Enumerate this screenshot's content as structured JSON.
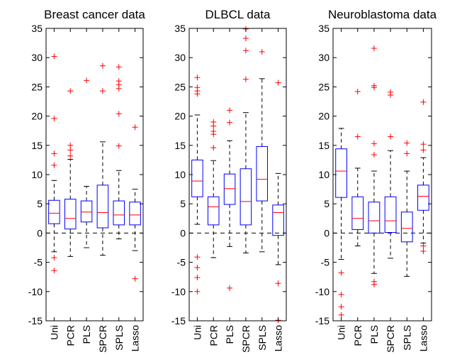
{
  "chart_data": [
    {
      "type": "box",
      "title": "Breast cancer data",
      "categories": [
        "Uni",
        "PCR",
        "PLS",
        "SPCR",
        "SPLS",
        "Lasso"
      ],
      "ylim": [
        -15,
        35
      ],
      "yticks": [
        -15,
        -10,
        -5,
        0,
        5,
        10,
        15,
        20,
        25,
        30,
        35
      ],
      "reference_line": 0,
      "boxes": [
        {
          "whisker_low": -3.2,
          "q1": 1.6,
          "median": 3.4,
          "q3": 5.6,
          "whisker_high": 9.0,
          "outliers": [
            30.2,
            19.6,
            13.6,
            11.6,
            -4.2,
            -6.4
          ]
        },
        {
          "whisker_low": -4.0,
          "q1": 0.7,
          "median": 2.5,
          "q3": 5.8,
          "whisker_high": 12.6,
          "outliers": [
            24.3,
            15.0,
            14.2,
            13.2
          ]
        },
        {
          "whisker_low": -2.5,
          "q1": 1.9,
          "median": 3.6,
          "q3": 5.5,
          "whisker_high": 8.0,
          "outliers": [
            26.1
          ]
        },
        {
          "whisker_low": -3.8,
          "q1": 0.9,
          "median": 3.5,
          "q3": 8.2,
          "whisker_high": 15.6,
          "outliers": [
            28.6,
            24.3
          ]
        },
        {
          "whisker_low": -1.0,
          "q1": 1.4,
          "median": 3.1,
          "q3": 5.5,
          "whisker_high": 10.7,
          "outliers": [
            28.4,
            26.0,
            25.4,
            24.7,
            20.4,
            14.9
          ]
        },
        {
          "whisker_low": -3.0,
          "q1": 1.4,
          "median": 3.1,
          "q3": 5.3,
          "whisker_high": 7.5,
          "outliers": [
            18.1,
            -7.8
          ]
        }
      ]
    },
    {
      "type": "box",
      "title": "DLBCL data",
      "categories": [
        "Uni",
        "PCR",
        "PLS",
        "SPCR",
        "SPLS",
        "Lasso"
      ],
      "ylim": [
        -15,
        35
      ],
      "yticks": [
        -15,
        -10,
        -5,
        0,
        5,
        10,
        15,
        20,
        25,
        30,
        35
      ],
      "reference_line": 0,
      "boxes": [
        {
          "whisker_low": 1.5,
          "q1": 6.2,
          "median": 8.9,
          "q3": 12.5,
          "whisker_high": 20.2,
          "outliers": [
            26.6,
            24.9,
            24.3,
            23.8,
            -4.1,
            -5.9,
            -7.6,
            -10.0
          ]
        },
        {
          "whisker_low": -4.2,
          "q1": 1.4,
          "median": 4.5,
          "q3": 6.2,
          "whisker_high": 12.4,
          "outliers": [
            19.0,
            18.3,
            17.4,
            16.9,
            14.6
          ]
        },
        {
          "whisker_low": -2.3,
          "q1": 4.9,
          "median": 7.6,
          "q3": 10.1,
          "whisker_high": 15.8,
          "outliers": [
            21.0,
            18.9,
            -9.4
          ]
        },
        {
          "whisker_low": -3.4,
          "q1": 1.4,
          "median": 5.4,
          "q3": 11.0,
          "whisker_high": 20.6,
          "outliers": [
            34.9,
            33.3,
            31.2,
            26.3
          ]
        },
        {
          "whisker_low": -3.2,
          "q1": 5.5,
          "median": 9.2,
          "q3": 14.8,
          "whisker_high": 26.4,
          "outliers": [
            31.0
          ]
        },
        {
          "whisker_low": -5.4,
          "q1": -0.4,
          "median": 3.5,
          "q3": 4.8,
          "whisker_high": 10.2,
          "outliers": [
            25.7,
            -8.6,
            -14.9
          ]
        }
      ]
    },
    {
      "type": "box",
      "title": "Neuroblastoma data",
      "categories": [
        "Uni",
        "PCR",
        "PLS",
        "SPCR",
        "SPLS",
        "Lasso"
      ],
      "ylim": [
        -15,
        35
      ],
      "yticks": [
        -15,
        -10,
        -5,
        0,
        5,
        10,
        15,
        20,
        25,
        30,
        35
      ],
      "reference_line": 0,
      "boxes": [
        {
          "whisker_low": -4.5,
          "q1": 6.1,
          "median": 10.6,
          "q3": 14.4,
          "whisker_high": 17.9,
          "outliers": [
            -6.8,
            -10.5,
            -12.6,
            -14.0
          ]
        },
        {
          "whisker_low": -2.2,
          "q1": 0.6,
          "median": 2.5,
          "q3": 6.2,
          "whisker_high": 11.1,
          "outliers": [
            24.2,
            16.5
          ]
        },
        {
          "whisker_low": -6.9,
          "q1": 0.0,
          "median": 2.1,
          "q3": 5.3,
          "whisker_high": 10.6,
          "outliers": [
            31.6,
            25.2,
            24.9,
            15.3,
            13.4,
            -8.3,
            -8.8
          ]
        },
        {
          "whisker_low": -4.3,
          "q1": 0.1,
          "median": 2.1,
          "q3": 6.2,
          "whisker_high": 14.1,
          "outliers": [
            24.1,
            23.6,
            16.5
          ]
        },
        {
          "whisker_low": -7.4,
          "q1": -1.5,
          "median": 0.8,
          "q3": 3.6,
          "whisker_high": 10.6,
          "outliers": [
            15.4,
            13.6
          ]
        },
        {
          "whisker_low": -1.7,
          "q1": 3.9,
          "median": 6.3,
          "q3": 8.2,
          "whisker_high": 12.9,
          "outliers": [
            22.4,
            15.2,
            14.2,
            -2.2,
            -3.1
          ]
        }
      ]
    }
  ]
}
